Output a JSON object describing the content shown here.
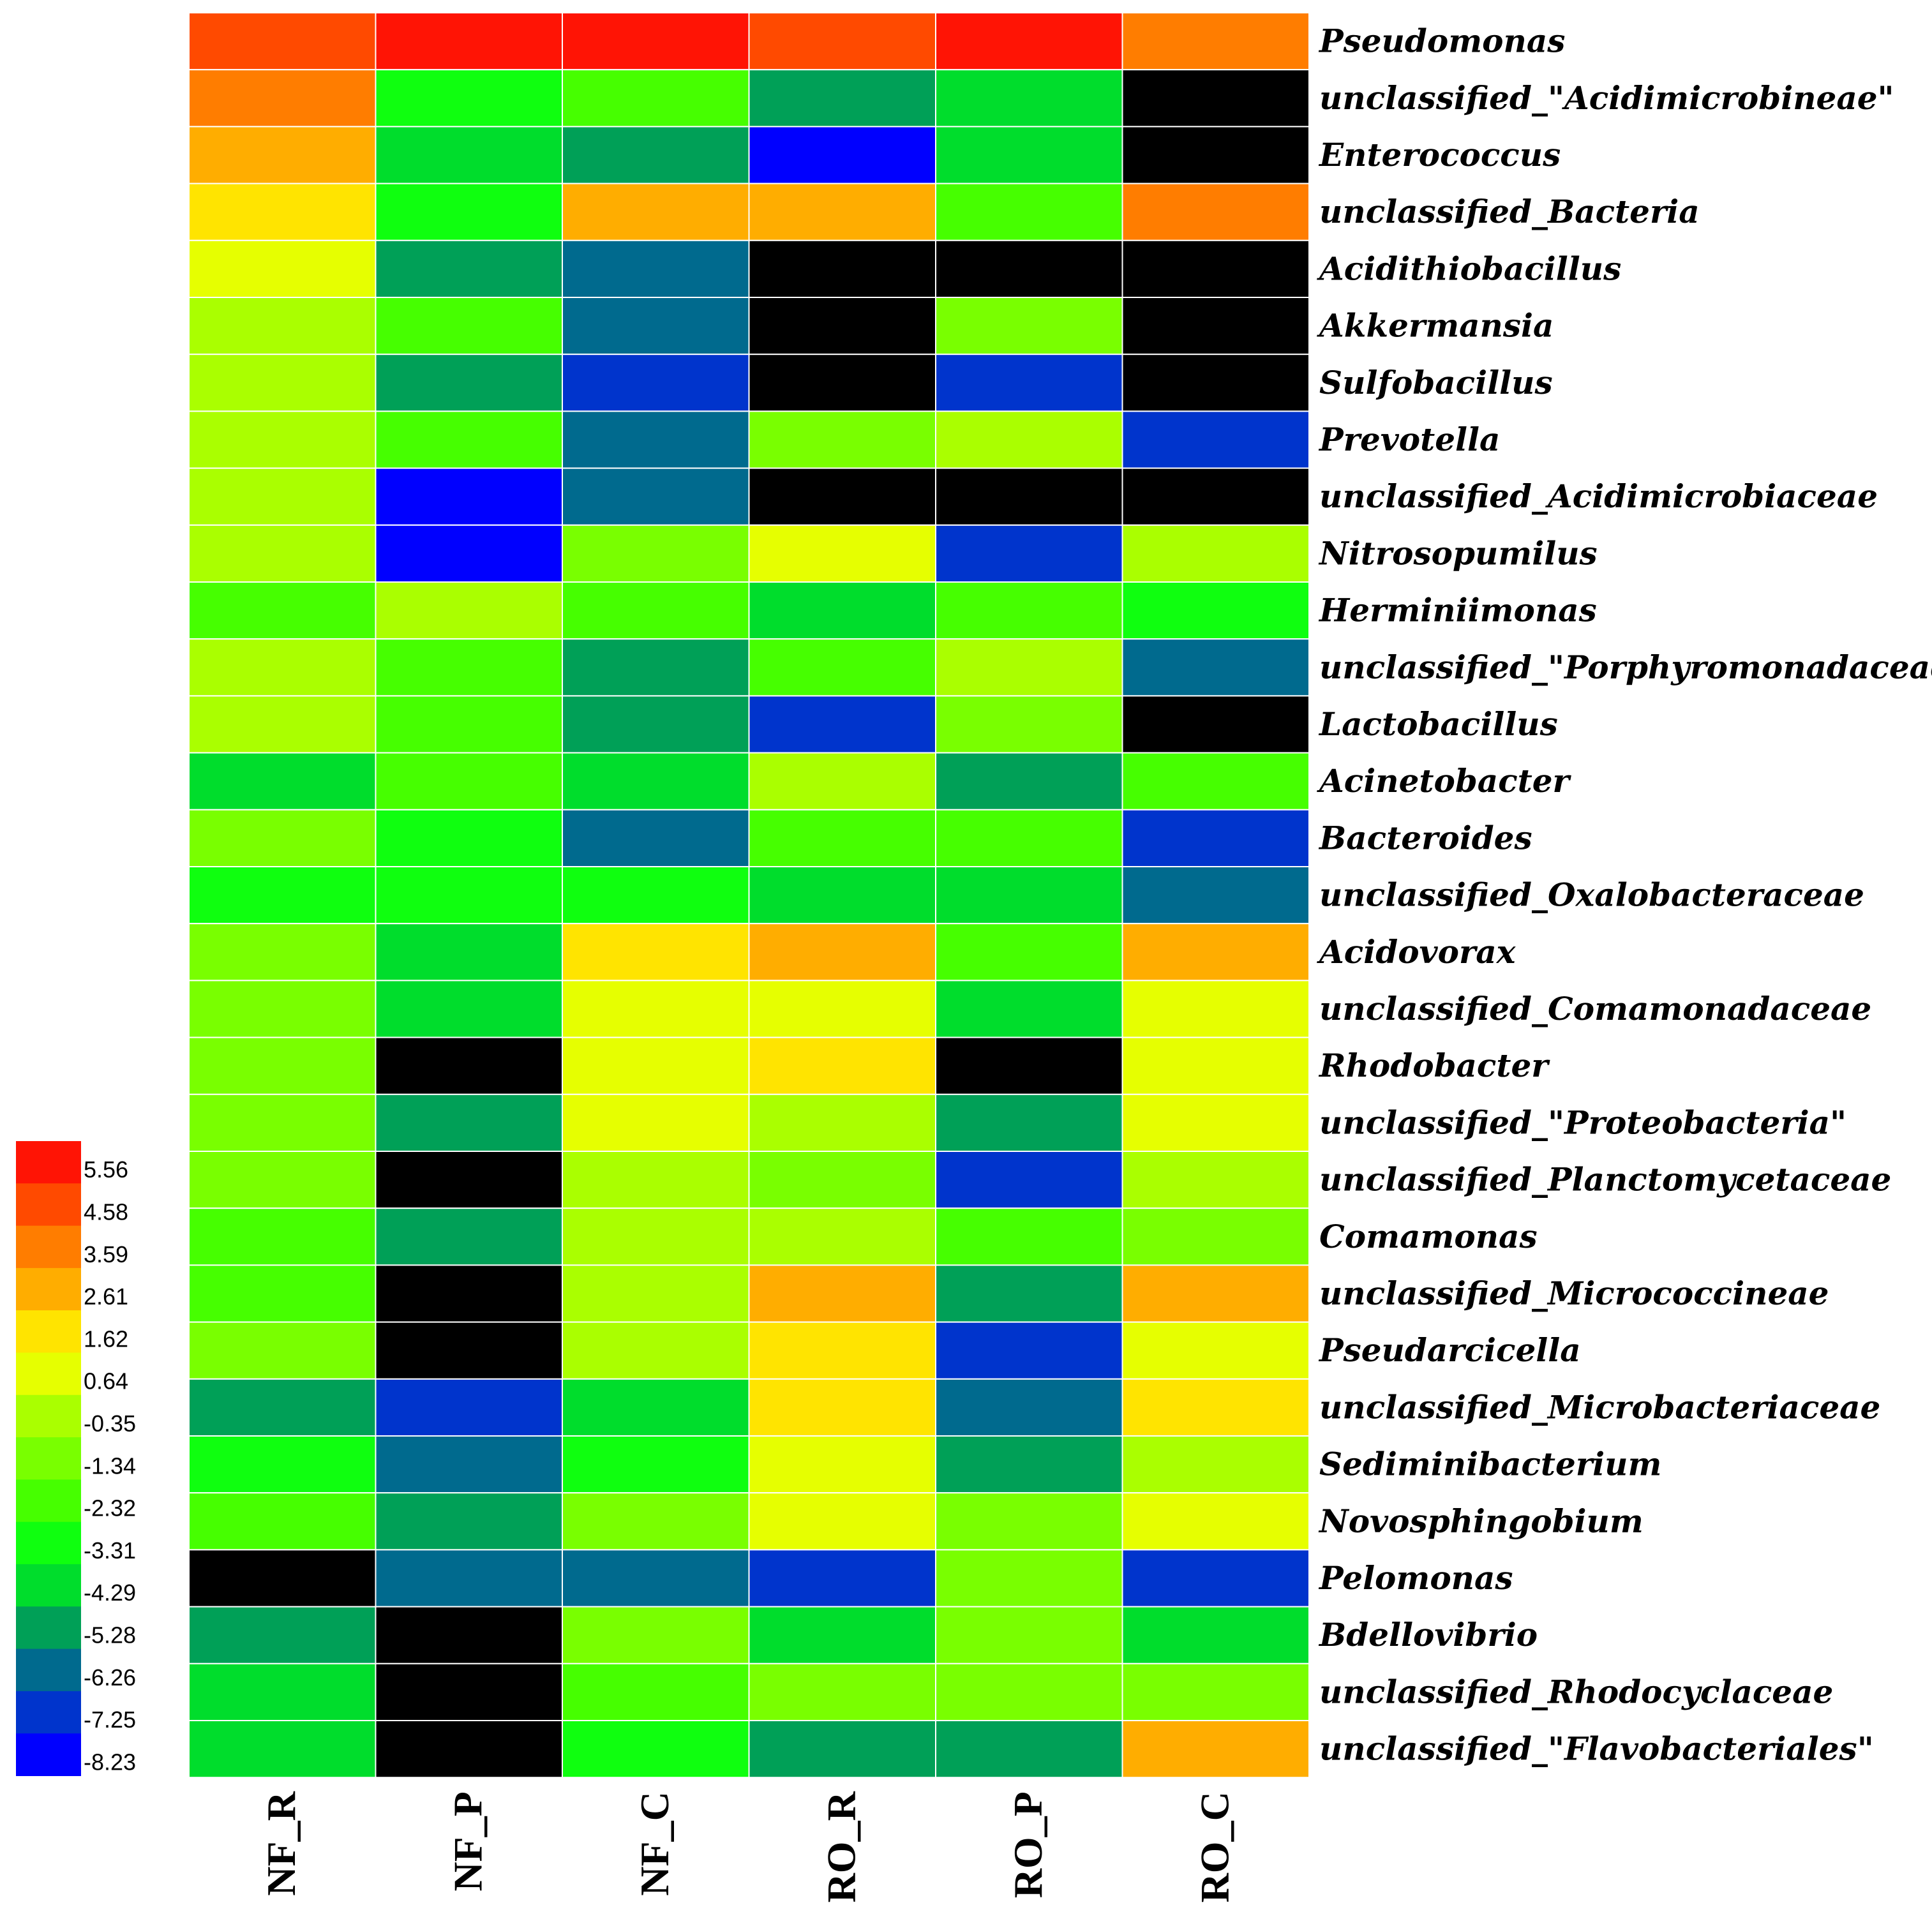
{
  "chart_data": {
    "type": "heatmap",
    "columns": [
      "NF_R",
      "NF_P",
      "NF_C",
      "RO_R",
      "RO_P",
      "RO_C"
    ],
    "rows": [
      "Pseudomonas",
      "unclassified_\"Acidimicrobineae\"",
      "Enterococcus",
      "unclassified_Bacteria",
      "Acidithiobacillus",
      "Akkermansia",
      "Sulfobacillus",
      "Prevotella",
      "unclassified_Acidimicrobiaceae",
      "Nitrosopumilus",
      "Herminiimonas",
      "unclassified_\"Porphyromonadaceae\"",
      "Lactobacillus",
      "Acinetobacter",
      "Bacteroides",
      "unclassified_Oxalobacteraceae",
      "Acidovorax",
      "unclassified_Comamonadaceae",
      "Rhodobacter",
      "unclassified_\"Proteobacteria\"",
      "unclassified_Planctomycetaceae",
      "Comamonas",
      "unclassified_Micrococcineae",
      "Pseudarcicella",
      "unclassified_Microbacteriaceae",
      "Sediminibacterium",
      "Novosphingobium",
      "Pelomonas",
      "Bdellovibrio",
      "unclassified_Rhodocyclaceae",
      "unclassified_\"Flavobacteriales\""
    ],
    "values": [
      [
        4.58,
        5.56,
        5.56,
        4.58,
        5.56,
        3.59
      ],
      [
        3.59,
        -3.31,
        -2.32,
        -5.28,
        -4.29,
        null
      ],
      [
        2.61,
        -4.29,
        -5.28,
        -8.23,
        -4.29,
        null
      ],
      [
        1.62,
        -3.31,
        2.61,
        2.61,
        -2.32,
        3.59
      ],
      [
        0.64,
        -5.28,
        -6.26,
        null,
        null,
        null
      ],
      [
        -0.35,
        -2.32,
        -6.26,
        null,
        -1.34,
        null
      ],
      [
        -0.35,
        -5.28,
        -7.25,
        null,
        -7.25,
        null
      ],
      [
        -0.35,
        -2.32,
        -6.26,
        -1.34,
        -0.35,
        -7.25
      ],
      [
        -0.35,
        -8.23,
        -6.26,
        null,
        null,
        null
      ],
      [
        -0.35,
        -8.23,
        -1.34,
        0.64,
        -7.25,
        -0.35
      ],
      [
        -2.32,
        -0.35,
        -2.32,
        -4.29,
        -2.32,
        -3.31
      ],
      [
        -0.35,
        -2.32,
        -5.28,
        -2.32,
        -0.35,
        -6.26
      ],
      [
        -0.35,
        -2.32,
        -5.28,
        -7.25,
        -1.34,
        null
      ],
      [
        -4.29,
        -2.32,
        -4.29,
        -0.35,
        -5.28,
        -2.32
      ],
      [
        -1.34,
        -3.31,
        -6.26,
        -2.32,
        -2.32,
        -7.25
      ],
      [
        -3.31,
        -3.31,
        -3.31,
        -4.29,
        -4.29,
        -6.26
      ],
      [
        -1.34,
        -4.29,
        1.62,
        2.61,
        -2.32,
        2.61
      ],
      [
        -1.34,
        -4.29,
        0.64,
        0.64,
        -4.29,
        0.64
      ],
      [
        -1.34,
        null,
        0.64,
        1.62,
        null,
        0.64
      ],
      [
        -1.34,
        -5.28,
        0.64,
        -0.35,
        -5.28,
        0.64
      ],
      [
        -1.34,
        null,
        -0.35,
        -1.34,
        -7.25,
        -0.35
      ],
      [
        -2.32,
        -5.28,
        -0.35,
        -0.35,
        -2.32,
        -1.34
      ],
      [
        -2.32,
        null,
        -0.35,
        2.61,
        -5.28,
        2.61
      ],
      [
        -1.34,
        null,
        -0.35,
        1.62,
        -7.25,
        0.64
      ],
      [
        -5.28,
        -7.25,
        -4.29,
        1.62,
        -6.26,
        1.62
      ],
      [
        -3.31,
        -6.26,
        -3.31,
        0.64,
        -5.28,
        -0.35
      ],
      [
        -2.32,
        -5.28,
        -1.34,
        0.64,
        -1.34,
        0.64
      ],
      [
        null,
        -6.26,
        -6.26,
        -7.25,
        -1.34,
        -7.25
      ],
      [
        -5.28,
        null,
        -1.34,
        -4.29,
        -1.34,
        -4.29
      ],
      [
        -4.29,
        null,
        -2.32,
        -1.34,
        -1.34,
        -1.34
      ],
      [
        -4.29,
        null,
        -3.31,
        -5.28,
        -5.28,
        2.61
      ]
    ],
    "missing_value_color": "#000000",
    "grid_color": "#ffffff",
    "legend": {
      "position": "bottom-left",
      "levels": [
        5.56,
        4.58,
        3.59,
        2.61,
        1.62,
        0.64,
        -0.35,
        -1.34,
        -2.32,
        -3.31,
        -4.29,
        -5.28,
        -6.26,
        -7.25,
        -8.23
      ],
      "labels": [
        "5.56",
        "4.58",
        "3.59",
        "2.61",
        "1.62",
        "0.64",
        "-0.35",
        "-1.34",
        "-2.32",
        "-3.31",
        "-4.29",
        "-5.28",
        "-6.26",
        "-7.25",
        "-8.23"
      ],
      "colors": [
        "#ff1405",
        "#ff4a00",
        "#ff7d00",
        "#ffad00",
        "#ffe400",
        "#e6ff00",
        "#aaff00",
        "#79ff00",
        "#46ff00",
        "#0fff0f",
        "#00dd2c",
        "#00a057",
        "#006a8e",
        "#0034cc",
        "#0000ff"
      ]
    }
  }
}
